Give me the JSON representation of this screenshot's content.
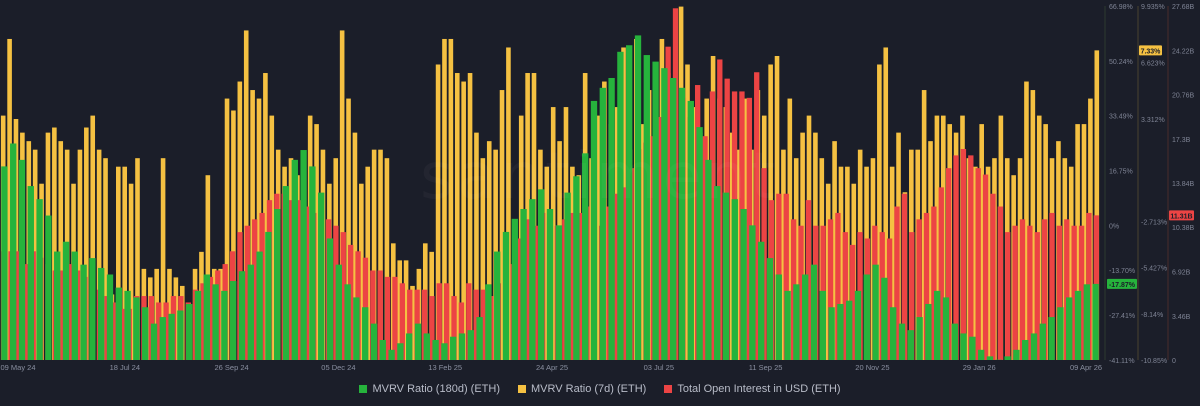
{
  "watermark": "santiment",
  "legend": [
    {
      "label": "MVRV Ratio (180d) (ETH)",
      "color": "#26b33c"
    },
    {
      "label": "MVRV Ratio (7d) (ETH)",
      "color": "#f5c142"
    },
    {
      "label": "Total Open Interest in USD (ETH)",
      "color": "#ec4444"
    }
  ],
  "badges": {
    "mvrv7d": {
      "text": "7.33%",
      "color": "#f5c142"
    },
    "mvrv180d": {
      "text": "-17.87%",
      "color": "#26b33c"
    },
    "oi": {
      "text": "11.31B",
      "color": "#ec4444"
    }
  },
  "chart_data": {
    "type": "bar",
    "x_tick_labels": [
      "09 May 24",
      "18 Jul 24",
      "26 Sep 24",
      "05 Dec 24",
      "13 Feb 25",
      "24 Apr 25",
      "03 Jul 25",
      "11 Sep 25",
      "20 Nov 25",
      "29 Jan 26",
      "09 Apr 26"
    ],
    "axes": {
      "mvrv180d": {
        "label": "MVRV Ratio (180d) (ETH)",
        "unit": "%",
        "ticks": [
          "66.98%",
          "50.24%",
          "33.49%",
          "16.75%",
          "0%",
          "-13.70%",
          "-27.41%",
          "-41.11%"
        ],
        "range": [
          -41.11,
          66.98
        ]
      },
      "mvrv7d": {
        "label": "MVRV Ratio (7d) (ETH)",
        "unit": "%",
        "ticks": [
          "9.935%",
          "6.623%",
          "3.312%",
          "-2.713%",
          "-5.427%",
          "-8.14%",
          "-10.85%"
        ],
        "range": [
          -10.85,
          9.935
        ]
      },
      "oi": {
        "label": "Total Open Interest in USD (ETH)",
        "unit": "USD",
        "ticks": [
          "27.68B",
          "24.22B",
          "20.76B",
          "17.3B",
          "13.84B",
          "10.38B",
          "6.92B",
          "3.46B",
          "0"
        ],
        "range": [
          0,
          27.68
        ]
      }
    },
    "series": [
      {
        "name": "MVRV Ratio (7d) (ETH)",
        "axis": "mvrv7d",
        "color": "#f5c142",
        "values": [
          3.5,
          8.0,
          3.3,
          2.5,
          2.0,
          1.5,
          -0.5,
          2.5,
          2.8,
          2.0,
          1.5,
          -0.5,
          1.5,
          2.8,
          3.5,
          1.5,
          1.0,
          -7.0,
          0.5,
          0.5,
          -0.5,
          1.0,
          -5.5,
          -6.0,
          -5.5,
          1.0,
          -5.5,
          -6.0,
          -6.5,
          -7.5,
          -5.5,
          -4.5,
          0.0,
          -5.5,
          -5.5,
          4.5,
          3.8,
          5.5,
          8.5,
          5.0,
          4.5,
          6.0,
          3.5,
          1.5,
          0.5,
          1.0,
          0.0,
          -4.0,
          3.5,
          3.0,
          1.5,
          -0.5,
          1.0,
          8.5,
          4.5,
          2.5,
          -0.5,
          0.5,
          1.5,
          1.5,
          1.0,
          -4.0,
          -5.0,
          -5.0,
          -6.5,
          -5.5,
          -4.0,
          -4.5,
          6.5,
          8.0,
          8.0,
          6.0,
          5.5,
          6.0,
          2.5,
          1.0,
          2.0,
          1.5,
          5.0,
          7.5,
          -8.0,
          3.5,
          6.0,
          6.0,
          1.5,
          0.5,
          4.0,
          2.0,
          4.0,
          0.5,
          0.0,
          6.0,
          1.0,
          3.5,
          5.5,
          3.0,
          4.0,
          7.5,
          1.5,
          8.0,
          3.0,
          5.0,
          3.5,
          8.0,
          6.0,
          5.0,
          9.9,
          6.5,
          4.0,
          2.5,
          4.5,
          7.0,
          4.5,
          4.0,
          2.5,
          1.5,
          4.5,
          1.5,
          5.0,
          3.5,
          6.5,
          7.0,
          1.5,
          4.5,
          1.0,
          2.5,
          3.5,
          2.5,
          1.0,
          -0.5,
          2.0,
          0.5,
          0.5,
          -0.5,
          1.5,
          0.5,
          1.0,
          6.5,
          7.5,
          0.5,
          2.5,
          -1.0,
          1.5,
          1.5,
          5.0,
          2.0,
          3.5,
          3.5,
          3.0,
          2.5,
          3.5,
          1.0,
          0.5,
          3.0,
          0.5,
          1.0,
          3.5,
          1.0,
          0.0,
          1.0,
          5.5,
          5.0,
          3.5,
          3.0,
          1.0,
          2.0,
          1.0,
          0.5,
          3.0,
          3.0,
          4.5,
          7.33
        ]
      },
      {
        "name": "Total Open Interest in USD (ETH)",
        "axis": "oi",
        "color": "#ec4444",
        "values": [
          8.5,
          8.5,
          8.5,
          7.5,
          8.5,
          8.0,
          7.5,
          7.0,
          7.0,
          7.5,
          7.0,
          6.5,
          6.0,
          5.5,
          5.0,
          4.5,
          4.0,
          4.0,
          5.0,
          5.0,
          5.0,
          4.5,
          4.5,
          5.0,
          5.0,
          4.5,
          5.5,
          6.0,
          6.5,
          7.0,
          7.5,
          8.5,
          10.0,
          10.5,
          11.0,
          11.5,
          12.5,
          13.0,
          13.0,
          12.5,
          12.5,
          12.0,
          11.5,
          11.5,
          11.0,
          10.5,
          10.0,
          9.0,
          8.5,
          8.0,
          7.0,
          7.0,
          6.5,
          6.5,
          6.0,
          5.5,
          5.5,
          5.5,
          5.0,
          6.0,
          6.0,
          5.0,
          4.5,
          6.0,
          5.5,
          5.5,
          5.0,
          6.0,
          6.5,
          7.5,
          9.5,
          11.0,
          10.5,
          11.5,
          10.5,
          10.5,
          11.0,
          11.5,
          11.5,
          12.0,
          11.0,
          10.5,
          12.0,
          13.0,
          13.5,
          15.0,
          16.5,
          17.0,
          17.5,
          19.0,
          24.5,
          27.5,
          20.5,
          19.0,
          21.5,
          17.5,
          21.0,
          23.5,
          22.0,
          21.0,
          21.0,
          20.5,
          22.5,
          15.0,
          12.5,
          13.0,
          13.0,
          11.0,
          10.5,
          12.5,
          10.5,
          10.5,
          11.0,
          11.5,
          10.0,
          9.0,
          10.0,
          9.5,
          10.5,
          10.0,
          9.5,
          12.0,
          13.0,
          10.0,
          11.0,
          11.5,
          12.0,
          13.5,
          15.0,
          16.0,
          16.5,
          16.0,
          15.0,
          14.5,
          13.0,
          12.0,
          10.0,
          10.5,
          11.0,
          10.5,
          10.0,
          11.0,
          11.5,
          10.5,
          11.0,
          10.5,
          10.5,
          11.5,
          11.31
        ]
      },
      {
        "name": "MVRV Ratio (180d) (ETH)",
        "axis": "mvrv180d",
        "color": "#26b33c",
        "values": [
          18,
          25,
          20,
          12,
          8,
          3,
          -8,
          -5,
          -8,
          -12,
          -10,
          -13,
          -15,
          -19,
          -20,
          -22,
          -25,
          -30,
          -28,
          -27,
          -26,
          -24,
          -20,
          -15,
          -18,
          -20,
          -17,
          -14,
          -12,
          -8,
          -2,
          5,
          12,
          20,
          23,
          18,
          10,
          -4,
          -12,
          -18,
          -22,
          -25,
          -30,
          -35,
          -38,
          -36,
          -33,
          -30,
          -33,
          -35,
          -36,
          -34,
          -33,
          -32,
          -28,
          -18,
          -8,
          -2,
          2,
          5,
          8,
          11,
          5,
          0,
          10,
          15,
          22,
          38,
          42,
          45,
          53,
          55,
          58,
          52,
          50,
          48,
          45,
          42,
          38,
          30,
          20,
          12,
          10,
          8,
          5,
          0,
          -5,
          -10,
          -15,
          -20,
          -18,
          -15,
          -12,
          -20,
          -25,
          -24,
          -23,
          -20,
          -15,
          -12,
          -16,
          -25,
          -30,
          -32,
          -28,
          -24,
          -20,
          -22,
          -30,
          -33,
          -34,
          -38,
          -40,
          -41,
          -40,
          -38,
          -35,
          -33,
          -30,
          -28,
          -25,
          -22,
          -20,
          -18,
          -17.87
        ]
      }
    ]
  }
}
